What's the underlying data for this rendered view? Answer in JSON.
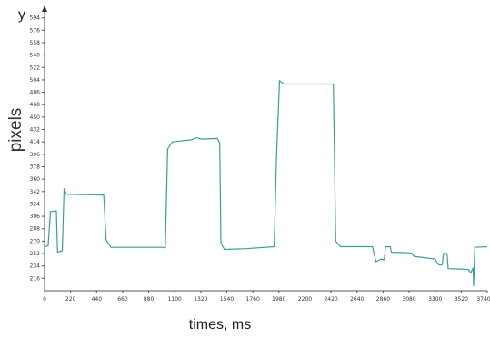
{
  "chart_data": {
    "type": "line",
    "title": "",
    "xlabel": "times, ms",
    "ylabel": "pixels",
    "y_axis_letter": "y",
    "xlim": [
      0,
      3740
    ],
    "ylim": [
      198,
      612
    ],
    "x_ticks": [
      "0",
      "220",
      "440",
      "660",
      "880",
      "1100",
      "1320",
      "1540",
      "1760",
      "1980",
      "2200",
      "2420",
      "2640",
      "2860",
      "3080",
      "3300",
      "3520",
      "3740"
    ],
    "y_ticks": [
      "216",
      "234",
      "252",
      "270",
      "288",
      "306",
      "324",
      "342",
      "360",
      "378",
      "396",
      "414",
      "432",
      "450",
      "468",
      "486",
      "504",
      "522",
      "540",
      "558",
      "576",
      "594"
    ],
    "grid": false,
    "colors": {
      "series": "#3a9e98",
      "axis": "#555555"
    },
    "series": [
      {
        "values": [
          [
            0,
            262
          ],
          [
            30,
            263
          ],
          [
            50,
            313
          ],
          [
            100,
            314
          ],
          [
            110,
            254
          ],
          [
            150,
            256
          ],
          [
            165,
            346
          ],
          [
            185,
            338
          ],
          [
            500,
            337
          ],
          [
            520,
            272
          ],
          [
            560,
            261
          ],
          [
            1000,
            261
          ],
          [
            1020,
            260
          ],
          [
            1040,
            404
          ],
          [
            1080,
            414
          ],
          [
            1240,
            417
          ],
          [
            1280,
            420
          ],
          [
            1330,
            418
          ],
          [
            1460,
            419
          ],
          [
            1480,
            412
          ],
          [
            1490,
            267
          ],
          [
            1520,
            258
          ],
          [
            1700,
            259
          ],
          [
            1940,
            262
          ],
          [
            1960,
            394
          ],
          [
            1985,
            503
          ],
          [
            2020,
            498
          ],
          [
            2440,
            498
          ],
          [
            2460,
            270
          ],
          [
            2500,
            262
          ],
          [
            2770,
            262
          ],
          [
            2800,
            240
          ],
          [
            2840,
            244
          ],
          [
            2870,
            243
          ],
          [
            2880,
            262
          ],
          [
            2920,
            262
          ],
          [
            2930,
            254
          ],
          [
            3100,
            253
          ],
          [
            3120,
            248
          ],
          [
            3300,
            244
          ],
          [
            3320,
            237
          ],
          [
            3340,
            235
          ],
          [
            3360,
            236
          ],
          [
            3370,
            252
          ],
          [
            3400,
            252
          ],
          [
            3410,
            230
          ],
          [
            3580,
            229
          ],
          [
            3600,
            224
          ],
          [
            3620,
            231
          ],
          [
            3625,
            205
          ],
          [
            3635,
            261
          ],
          [
            3740,
            262
          ]
        ]
      }
    ]
  }
}
